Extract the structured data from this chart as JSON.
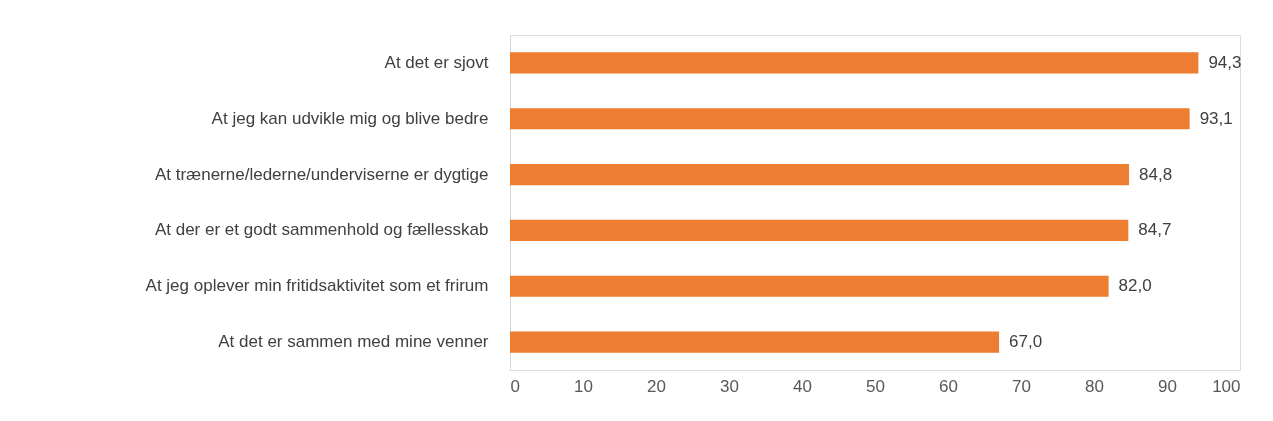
{
  "chart_data": {
    "type": "bar",
    "orientation": "horizontal",
    "categories": [
      "At det er sjovt",
      "At jeg kan udvikle mig og blive bedre",
      "At trænerne/lederne/underviserne er dygtige",
      "At der er et godt sammenhold og fællesskab",
      "At jeg oplever min fritidsaktivitet som et frirum",
      "At det er sammen med mine venner"
    ],
    "values": [
      94.3,
      93.1,
      84.8,
      84.7,
      82.0,
      67.0
    ],
    "value_labels": [
      "94,3",
      "93,1",
      "84,8",
      "84,7",
      "82,0",
      "67,0"
    ],
    "color": "#ed7d31",
    "xlim": [
      0,
      100
    ],
    "xticks": [
      0,
      10,
      20,
      30,
      40,
      50,
      60,
      70,
      80,
      90,
      100
    ],
    "grid": false
  }
}
